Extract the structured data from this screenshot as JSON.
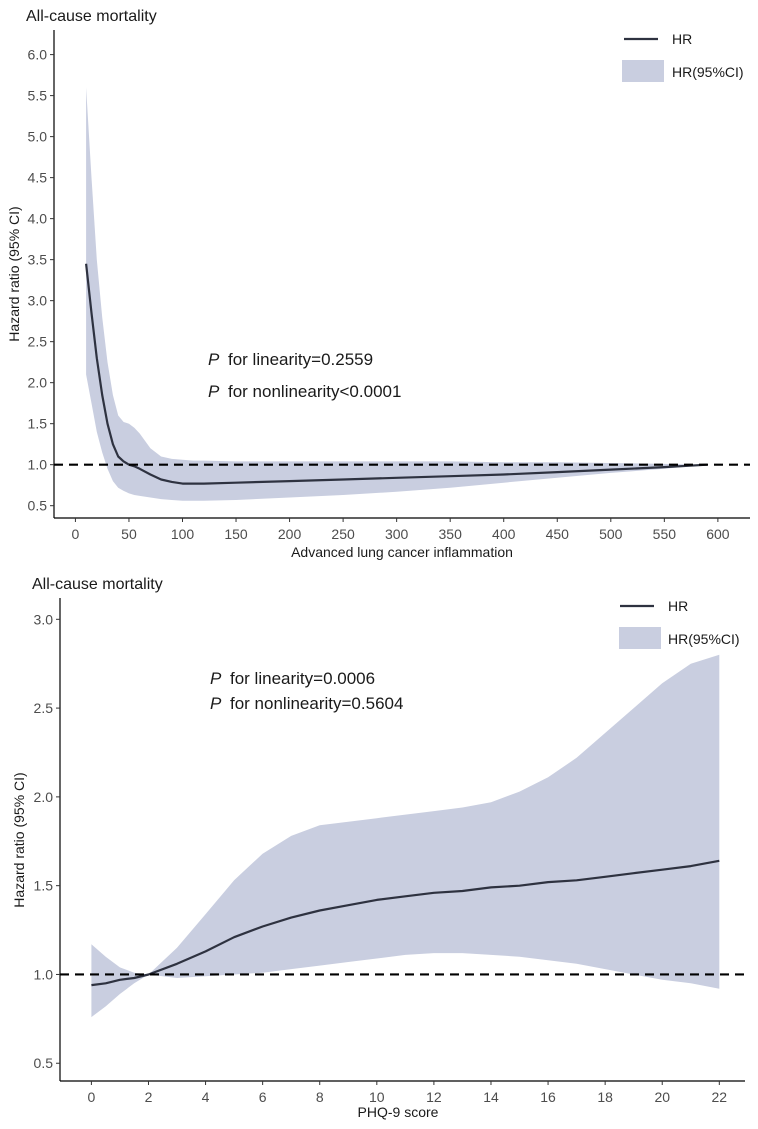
{
  "colors": {
    "hr_line": "#2e3240",
    "ci_band": "#c9cee0",
    "reference_line": "#000000",
    "axis": "#000000",
    "text": "#1a1a1a"
  },
  "chart_data": [
    {
      "type": "line",
      "title": "All-cause mortality",
      "xlabel": "Advanced lung cancer inflammation",
      "ylabel": "Hazard ratio (95% CI)",
      "xlim": [
        -20,
        630
      ],
      "ylim": [
        0.35,
        6.3
      ],
      "xticks": [
        0,
        50,
        100,
        150,
        200,
        250,
        300,
        350,
        400,
        450,
        500,
        550,
        600
      ],
      "yticks": [
        0.5,
        1.0,
        1.5,
        2.0,
        2.5,
        3.0,
        3.5,
        4.0,
        4.5,
        5.0,
        5.5,
        6.0
      ],
      "ytick_labels": [
        "0.5",
        "1.0",
        "1.5",
        "2.0",
        "2.5",
        "3.0",
        "3.5",
        "4.0",
        "4.5",
        "5.0",
        "5.5",
        "6.0"
      ],
      "reference_y": 1.0,
      "legend": {
        "position": "top-right",
        "line_label": "HR",
        "band_label": "HR(95%CI)"
      },
      "annotations": [
        {
          "italic": "P",
          "text": "for linearity=0.2559"
        },
        {
          "italic": "P",
          "text": "for nonlinearity<0.0001"
        }
      ],
      "series": [
        {
          "name": "HR",
          "x": [
            10,
            15,
            20,
            25,
            30,
            35,
            40,
            45,
            50,
            55,
            60,
            70,
            80,
            90,
            100,
            110,
            120,
            150,
            200,
            250,
            300,
            350,
            400,
            450,
            500,
            550,
            590
          ],
          "y": [
            3.45,
            2.85,
            2.3,
            1.85,
            1.5,
            1.25,
            1.1,
            1.04,
            1.0,
            0.98,
            0.95,
            0.88,
            0.82,
            0.79,
            0.77,
            0.77,
            0.77,
            0.78,
            0.8,
            0.82,
            0.84,
            0.86,
            0.88,
            0.91,
            0.94,
            0.97,
            1.0
          ]
        },
        {
          "name": "HR(95%CI)",
          "x": [
            10,
            15,
            20,
            25,
            30,
            35,
            40,
            45,
            50,
            55,
            60,
            70,
            80,
            90,
            100,
            110,
            120,
            150,
            200,
            250,
            300,
            350,
            400,
            450,
            500,
            550,
            590
          ],
          "lower": [
            2.1,
            1.75,
            1.4,
            1.15,
            0.95,
            0.8,
            0.72,
            0.68,
            0.65,
            0.63,
            0.62,
            0.6,
            0.58,
            0.57,
            0.56,
            0.56,
            0.56,
            0.57,
            0.6,
            0.63,
            0.67,
            0.72,
            0.78,
            0.84,
            0.9,
            0.95,
            1.0
          ],
          "upper": [
            5.6,
            4.5,
            3.5,
            2.8,
            2.25,
            1.85,
            1.6,
            1.52,
            1.5,
            1.45,
            1.38,
            1.2,
            1.1,
            1.07,
            1.06,
            1.05,
            1.05,
            1.04,
            1.04,
            1.04,
            1.04,
            1.04,
            1.03,
            1.03,
            1.02,
            1.01,
            1.0
          ]
        }
      ]
    },
    {
      "type": "line",
      "title": "All-cause mortality",
      "xlabel": "PHQ-9 score",
      "ylabel": "Hazard ratio (95% CI)",
      "xlim": [
        -1.1,
        22.9
      ],
      "ylim": [
        0.4,
        3.12
      ],
      "xticks": [
        0,
        2,
        4,
        6,
        8,
        10,
        12,
        14,
        16,
        18,
        20,
        22
      ],
      "yticks": [
        0.5,
        1.0,
        1.5,
        2.0,
        2.5,
        3.0
      ],
      "ytick_labels": [
        "0.5",
        "1.0",
        "1.5",
        "2.0",
        "2.5",
        "3.0"
      ],
      "reference_y": 1.0,
      "legend": {
        "position": "top-right",
        "line_label": "HR",
        "band_label": "HR(95%CI)"
      },
      "annotations": [
        {
          "italic": "P",
          "text": "for linearity=0.0006"
        },
        {
          "italic": "P",
          "text": "for nonlinearity=0.5604"
        }
      ],
      "series": [
        {
          "name": "HR",
          "x": [
            0,
            0.5,
            1,
            1.5,
            2,
            3,
            4,
            5,
            6,
            7,
            8,
            9,
            10,
            11,
            12,
            13,
            14,
            15,
            16,
            17,
            18,
            19,
            20,
            21,
            22
          ],
          "y": [
            0.94,
            0.95,
            0.97,
            0.98,
            1.0,
            1.06,
            1.13,
            1.21,
            1.27,
            1.32,
            1.36,
            1.39,
            1.42,
            1.44,
            1.46,
            1.47,
            1.49,
            1.5,
            1.52,
            1.53,
            1.55,
            1.57,
            1.59,
            1.61,
            1.64
          ]
        },
        {
          "name": "HR(95%CI)",
          "x": [
            0,
            0.5,
            1,
            1.5,
            2,
            3,
            4,
            5,
            6,
            7,
            8,
            9,
            10,
            11,
            12,
            13,
            14,
            15,
            16,
            17,
            18,
            19,
            20,
            21,
            22
          ],
          "lower": [
            0.76,
            0.82,
            0.89,
            0.95,
            1.0,
            0.98,
            0.99,
            1.0,
            1.01,
            1.03,
            1.05,
            1.07,
            1.09,
            1.11,
            1.12,
            1.12,
            1.11,
            1.1,
            1.08,
            1.06,
            1.03,
            1.0,
            0.97,
            0.95,
            0.92
          ],
          "upper": [
            1.17,
            1.1,
            1.04,
            1.01,
            1.0,
            1.15,
            1.34,
            1.53,
            1.68,
            1.78,
            1.84,
            1.86,
            1.88,
            1.9,
            1.92,
            1.94,
            1.97,
            2.03,
            2.11,
            2.22,
            2.36,
            2.5,
            2.64,
            2.75,
            2.8
          ]
        }
      ]
    }
  ]
}
